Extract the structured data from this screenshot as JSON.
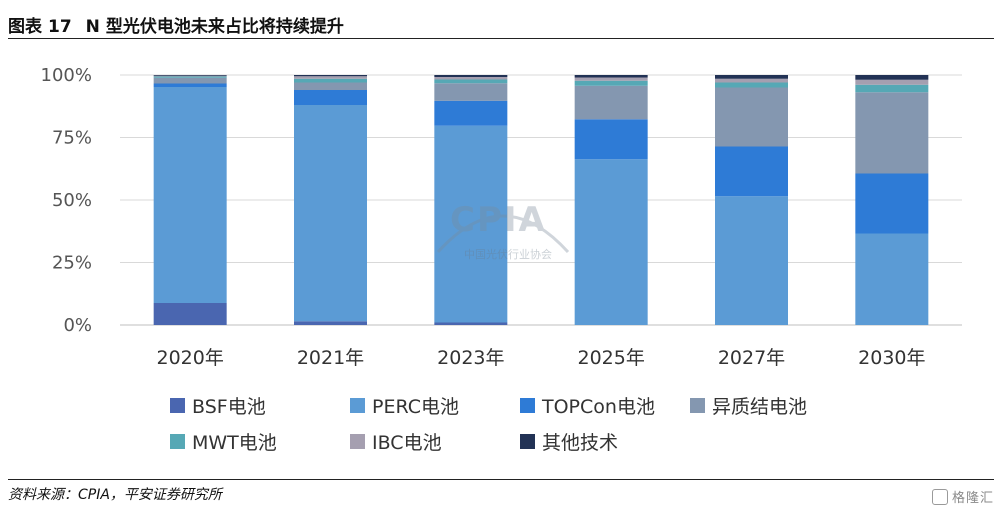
{
  "figure": {
    "label": "图表",
    "number": "17",
    "title": "N 型光伏电池未来占比将持续提升"
  },
  "source": "资料来源：CPIA，平安证券研究所",
  "watermark": {
    "center_logo": "CPIA",
    "center_text": "中国光伏行业协会",
    "corner_text": "格隆汇"
  },
  "chart_data": {
    "type": "bar",
    "stacked": true,
    "categories": [
      "2020年",
      "2021年",
      "2023年",
      "2025年",
      "2027年",
      "2030年"
    ],
    "y_ticks": [
      "0%",
      "25%",
      "50%",
      "75%",
      "100%"
    ],
    "ylim": [
      0,
      100
    ],
    "grid": true,
    "legend_position": "bottom",
    "series": [
      {
        "name": "BSF电池",
        "color": "#4a66b0",
        "values": [
          8.8,
          1.5,
          1.0,
          0.0,
          0.0,
          0.0
        ]
      },
      {
        "name": "PERC电池",
        "color": "#5b9bd5",
        "values": [
          86.4,
          86.5,
          78.7,
          66.3,
          51.5,
          36.6
        ]
      },
      {
        "name": "TOPCon电池",
        "color": "#2e7bd6",
        "values": [
          1.4,
          6.0,
          10.0,
          16.0,
          19.9,
          24.0
        ]
      },
      {
        "name": "异质结电池",
        "color": "#8497b0",
        "values": [
          2.3,
          3.0,
          7.0,
          13.4,
          23.6,
          32.5
        ]
      },
      {
        "name": "MWT电池",
        "color": "#56a8b5",
        "values": [
          0.5,
          1.5,
          1.5,
          2.0,
          2.0,
          3.0
        ]
      },
      {
        "name": "IBC电池",
        "color": "#a59fb0",
        "values": [
          0.3,
          1.0,
          1.0,
          1.3,
          1.5,
          2.0
        ]
      },
      {
        "name": "其他技术",
        "color": "#223255",
        "values": [
          0.3,
          0.5,
          0.8,
          1.0,
          1.5,
          1.9
        ]
      }
    ]
  }
}
